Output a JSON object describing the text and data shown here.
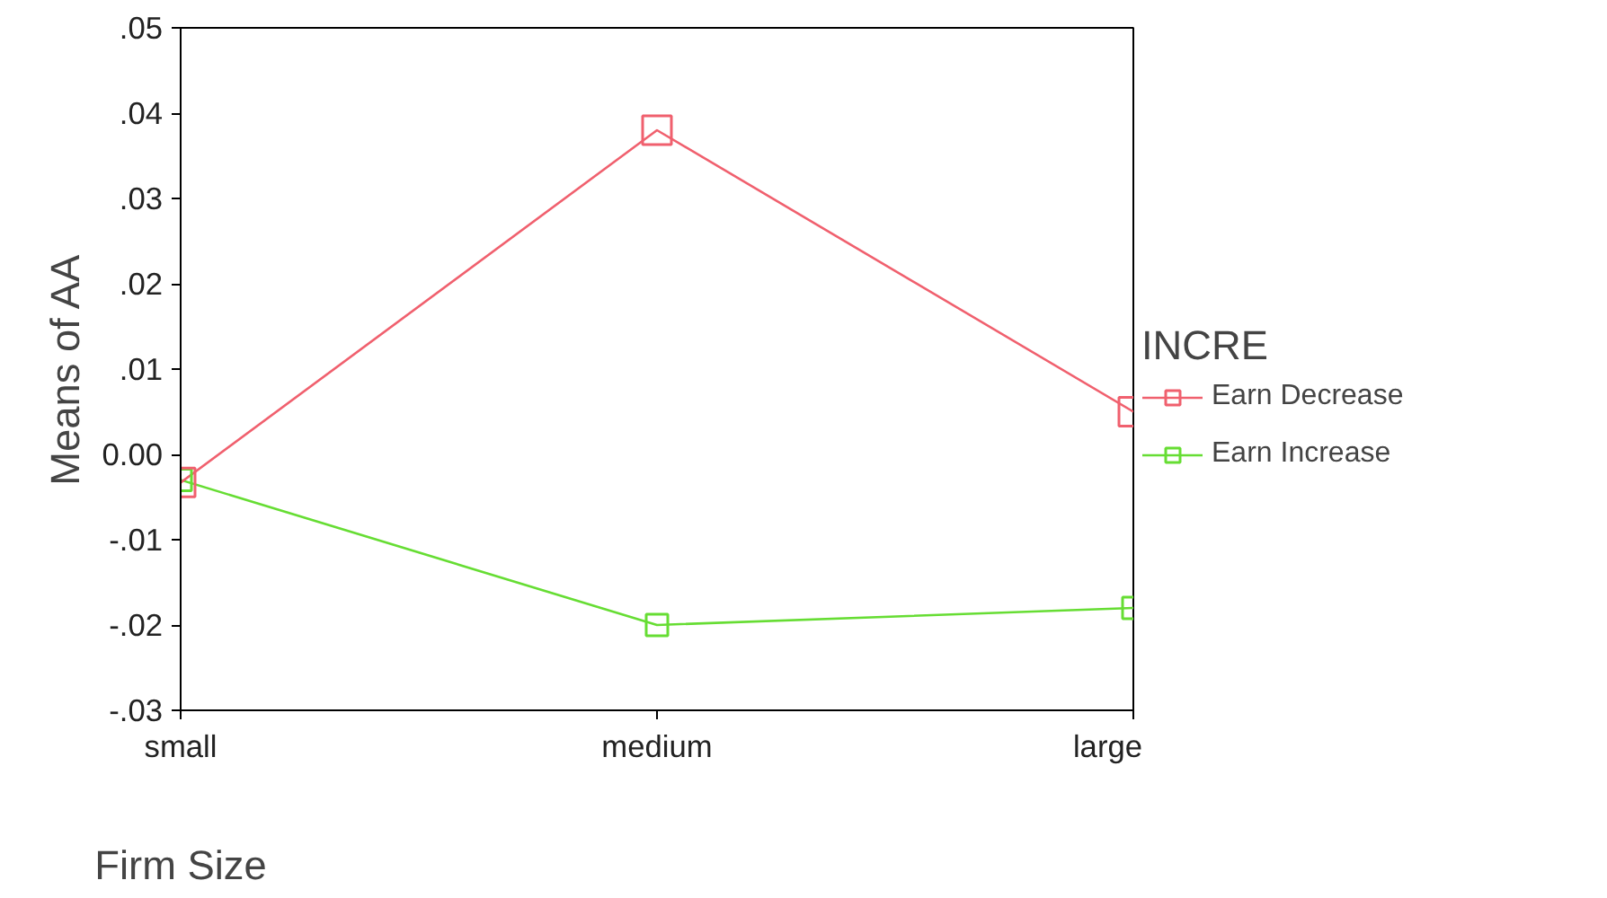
{
  "chart_data": {
    "type": "line",
    "xlabel": "Firm Size",
    "ylabel": "Means of AA",
    "legend_title": "INCRE",
    "categories": [
      "small",
      "medium",
      "large"
    ],
    "series": [
      {
        "name": "Earn Decrease",
        "color": "#f0606e",
        "values": [
          -0.0033,
          0.038,
          0.005
        ]
      },
      {
        "name": "Earn Increase",
        "color": "#66dd33",
        "values": [
          -0.003,
          -0.02,
          -0.018
        ]
      }
    ],
    "ylim": [
      -0.03,
      0.05
    ],
    "yticks": [
      {
        "value": -0.03,
        "label": "-.03"
      },
      {
        "value": -0.02,
        "label": "-.02"
      },
      {
        "value": -0.01,
        "label": "-.01"
      },
      {
        "value": 0,
        "label": "0.00"
      },
      {
        "value": 0.01,
        "label": ".01"
      },
      {
        "value": 0.02,
        "label": ".02"
      },
      {
        "value": 0.03,
        "label": ".03"
      },
      {
        "value": 0.04,
        "label": ".04"
      },
      {
        "value": 0.05,
        "label": ".05"
      }
    ],
    "marker": "square",
    "line_style": "solid",
    "grid": false,
    "legend": "right"
  }
}
